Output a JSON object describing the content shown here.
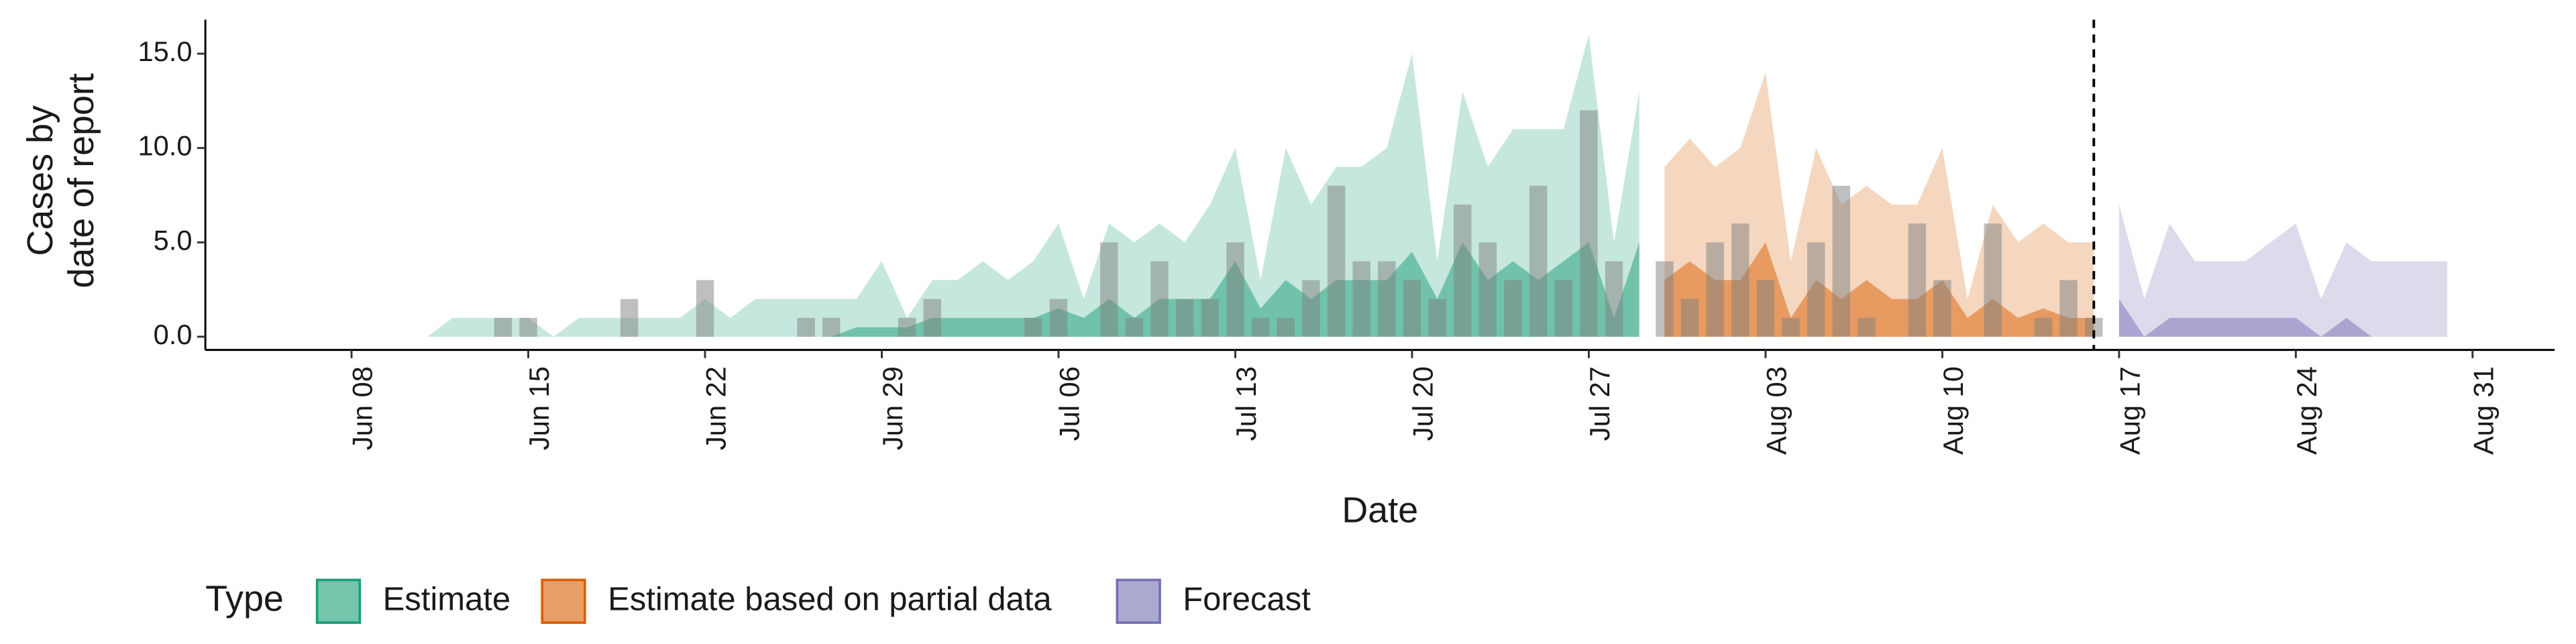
{
  "chart_data": {
    "type": "ribbon",
    "x_label": "Date",
    "y_label": [
      "Cases by",
      "date of report"
    ],
    "legend_title": "Type",
    "x": [
      "Jun 07",
      "Jun 08",
      "Jun 09",
      "Jun 10",
      "Jun 11",
      "Jun 12",
      "Jun 13",
      "Jun 14",
      "Jun 15",
      "Jun 16",
      "Jun 17",
      "Jun 18",
      "Jun 19",
      "Jun 20",
      "Jun 21",
      "Jun 22",
      "Jun 23",
      "Jun 24",
      "Jun 25",
      "Jun 26",
      "Jun 27",
      "Jun 28",
      "Jun 29",
      "Jun 30",
      "Jul 01",
      "Jul 02",
      "Jul 03",
      "Jul 04",
      "Jul 05",
      "Jul 06",
      "Jul 07",
      "Jul 08",
      "Jul 09",
      "Jul 10",
      "Jul 11",
      "Jul 12",
      "Jul 13",
      "Jul 14",
      "Jul 15",
      "Jul 16",
      "Jul 17",
      "Jul 18",
      "Jul 19",
      "Jul 20",
      "Jul 21",
      "Jul 22",
      "Jul 23",
      "Jul 24",
      "Jul 25",
      "Jul 26",
      "Jul 27",
      "Jul 28",
      "Jul 29",
      "Jul 30",
      "Jul 31",
      "Aug 01",
      "Aug 02",
      "Aug 03",
      "Aug 04",
      "Aug 05",
      "Aug 06",
      "Aug 07",
      "Aug 08",
      "Aug 09",
      "Aug 10",
      "Aug 11",
      "Aug 12",
      "Aug 13",
      "Aug 14",
      "Aug 15",
      "Aug 16",
      "Aug 17",
      "Aug 18",
      "Aug 19",
      "Aug 20",
      "Aug 21",
      "Aug 22",
      "Aug 23",
      "Aug 24",
      "Aug 25",
      "Aug 26",
      "Aug 27",
      "Aug 28",
      "Aug 29",
      "Aug 30",
      "Aug 31"
    ],
    "xticks": [
      "Jun 08",
      "Jun 15",
      "Jun 22",
      "Jun 29",
      "Jul 06",
      "Jul 13",
      "Jul 20",
      "Jul 27",
      "Aug 03",
      "Aug 10",
      "Aug 17",
      "Aug 24",
      "Aug 31"
    ],
    "ylim": [
      -0.7,
      16.8
    ],
    "yticks": [
      {
        "value": 0,
        "label": "0.0"
      },
      {
        "value": 5,
        "label": "5.0"
      },
      {
        "value": 10,
        "label": "10.0"
      },
      {
        "value": 15,
        "label": "15.0"
      }
    ],
    "vline": "Aug 16",
    "bars": {
      "color": "#808080",
      "values": [
        0,
        0,
        0,
        0,
        0,
        0,
        0,
        1,
        1,
        0,
        0,
        0,
        2,
        0,
        0,
        3,
        0,
        0,
        0,
        1,
        1,
        0,
        0,
        1,
        2,
        0,
        0,
        0,
        1,
        2,
        0,
        5,
        1,
        4,
        2,
        2,
        5,
        1,
        1,
        3,
        8,
        4,
        4,
        3,
        2,
        7,
        5,
        3,
        8,
        3,
        12,
        4,
        0,
        4,
        2,
        5,
        6,
        3,
        1,
        5,
        8,
        1,
        0,
        6,
        3,
        0,
        6,
        0,
        1,
        3,
        1,
        null,
        null,
        null,
        null,
        null,
        null,
        null,
        null,
        null,
        null,
        null,
        null,
        null,
        null,
        null
      ]
    },
    "series": [
      {
        "name": "Estimate",
        "color": "#1b9e77",
        "values": [
          0,
          0,
          0,
          0,
          0,
          1,
          1,
          1,
          1,
          0,
          1,
          1,
          1,
          1,
          1,
          2,
          1,
          2,
          2,
          2,
          2,
          2,
          4,
          1,
          3,
          3,
          4,
          3,
          4,
          6,
          2,
          6,
          5,
          6,
          5,
          7,
          10,
          3,
          10,
          7,
          9,
          9,
          10,
          15,
          4,
          13,
          9,
          11,
          11,
          11,
          16,
          5,
          13,
          null,
          null,
          null,
          null,
          null,
          null,
          null,
          null,
          null,
          null,
          null,
          null,
          null,
          null,
          null,
          null,
          null,
          null,
          null,
          null,
          null,
          null,
          null,
          null,
          null,
          null,
          null,
          null,
          null,
          null,
          null,
          null,
          null
        ],
        "inner_values": [
          0,
          0,
          0,
          0,
          0,
          0,
          0,
          0,
          0,
          0,
          0,
          0,
          0,
          0,
          0,
          0,
          0,
          0,
          0,
          0,
          0,
          0.5,
          0.5,
          0.5,
          1,
          1,
          1,
          1,
          1,
          1.5,
          1,
          2,
          1,
          2,
          2,
          2,
          4,
          1.5,
          3,
          2,
          3,
          3,
          3,
          4.5,
          2,
          5,
          3,
          4,
          3,
          4,
          5,
          1,
          5,
          null,
          null,
          null,
          null,
          null,
          null,
          null,
          null,
          null,
          null,
          null,
          null,
          null,
          null,
          null,
          null,
          null,
          null,
          null,
          null,
          null,
          null,
          null,
          null,
          null,
          null,
          null,
          null,
          null,
          null,
          null,
          null,
          null
        ]
      },
      {
        "name": "Estimate based on partial data",
        "color": "#d95f02",
        "values": [
          null,
          null,
          null,
          null,
          null,
          null,
          null,
          null,
          null,
          null,
          null,
          null,
          null,
          null,
          null,
          null,
          null,
          null,
          null,
          null,
          null,
          null,
          null,
          null,
          null,
          null,
          null,
          null,
          null,
          null,
          null,
          null,
          null,
          null,
          null,
          null,
          null,
          null,
          null,
          null,
          null,
          null,
          null,
          null,
          null,
          null,
          null,
          null,
          null,
          null,
          null,
          null,
          null,
          9,
          10.5,
          9,
          10,
          14,
          4,
          10,
          7,
          8,
          7,
          7,
          10,
          2,
          7,
          5,
          6,
          5,
          5,
          null,
          null,
          null,
          null,
          null,
          null,
          null,
          null,
          null,
          null,
          null,
          null,
          null,
          null,
          null
        ],
        "inner_values": [
          null,
          null,
          null,
          null,
          null,
          null,
          null,
          null,
          null,
          null,
          null,
          null,
          null,
          null,
          null,
          null,
          null,
          null,
          null,
          null,
          null,
          null,
          null,
          null,
          null,
          null,
          null,
          null,
          null,
          null,
          null,
          null,
          null,
          null,
          null,
          null,
          null,
          null,
          null,
          null,
          null,
          null,
          null,
          null,
          null,
          null,
          null,
          null,
          null,
          null,
          null,
          null,
          null,
          3,
          4,
          3,
          3,
          5,
          1,
          3,
          2,
          3,
          2,
          2,
          3,
          1,
          2,
          1,
          1.5,
          1,
          1,
          null,
          null,
          null,
          null,
          null,
          null,
          null,
          null,
          null,
          null,
          null,
          null,
          null,
          null,
          null
        ]
      },
      {
        "name": "Forecast",
        "color": "#7570b3",
        "values": [
          null,
          null,
          null,
          null,
          null,
          null,
          null,
          null,
          null,
          null,
          null,
          null,
          null,
          null,
          null,
          null,
          null,
          null,
          null,
          null,
          null,
          null,
          null,
          null,
          null,
          null,
          null,
          null,
          null,
          null,
          null,
          null,
          null,
          null,
          null,
          null,
          null,
          null,
          null,
          null,
          null,
          null,
          null,
          null,
          null,
          null,
          null,
          null,
          null,
          null,
          null,
          null,
          null,
          null,
          null,
          null,
          null,
          null,
          null,
          null,
          null,
          null,
          null,
          null,
          null,
          null,
          null,
          null,
          null,
          null,
          null,
          7,
          2,
          6,
          4,
          4,
          4,
          5,
          6,
          2,
          5,
          4,
          4,
          4,
          4,
          null
        ],
        "inner_values": [
          null,
          null,
          null,
          null,
          null,
          null,
          null,
          null,
          null,
          null,
          null,
          null,
          null,
          null,
          null,
          null,
          null,
          null,
          null,
          null,
          null,
          null,
          null,
          null,
          null,
          null,
          null,
          null,
          null,
          null,
          null,
          null,
          null,
          null,
          null,
          null,
          null,
          null,
          null,
          null,
          null,
          null,
          null,
          null,
          null,
          null,
          null,
          null,
          null,
          null,
          null,
          null,
          null,
          null,
          null,
          null,
          null,
          null,
          null,
          null,
          null,
          null,
          null,
          null,
          null,
          null,
          null,
          null,
          null,
          null,
          null,
          2,
          0,
          1,
          1,
          1,
          1,
          1,
          1,
          0,
          1,
          0,
          0,
          0,
          0,
          null
        ]
      }
    ]
  }
}
